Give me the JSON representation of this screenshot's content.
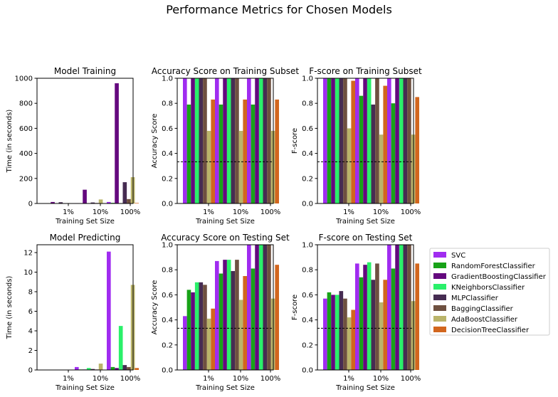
{
  "figure_title": "Performance Metrics for Chosen Models",
  "x_tick_labels": [
    "1%",
    "10%",
    "100%"
  ],
  "chart_data": [
    {
      "type": "bar",
      "title": "Model Training",
      "xlabel": "Training Set Size",
      "ylabel": "Time (in seconds)",
      "ylim": [
        0,
        1000
      ],
      "yticks": [
        "0",
        "200",
        "400",
        "600",
        "800",
        "1000"
      ],
      "categories": [
        "1%",
        "10%",
        "100%"
      ],
      "baseline": null,
      "series": [
        {
          "name": "SVC",
          "values": [
            0.1,
            3,
            12
          ]
        },
        {
          "name": "RandomForestClassifier",
          "values": [
            0.5,
            2,
            5
          ]
        },
        {
          "name": "GradientBoostingClassifier",
          "values": [
            12,
            110,
            960
          ]
        },
        {
          "name": "KNeighborsClassifier",
          "values": [
            0.1,
            0.5,
            2
          ]
        },
        {
          "name": "MLPClassifier",
          "values": [
            10,
            8,
            170
          ]
        },
        {
          "name": "BaggingClassifier",
          "values": [
            1,
            4,
            35
          ]
        },
        {
          "name": "AdaBoostClassifier",
          "values": [
            3,
            32,
            210
          ]
        },
        {
          "name": "DecisionTreeClassifier",
          "values": [
            0.2,
            1,
            4
          ]
        }
      ]
    },
    {
      "type": "bar",
      "title": "Accuracy Score on Training Subset",
      "xlabel": "Training Set Size",
      "ylabel": "Accuracy Score",
      "ylim": [
        0,
        1
      ],
      "yticks": [
        "0.0",
        "0.2",
        "0.4",
        "0.6",
        "0.8",
        "1.0"
      ],
      "categories": [
        "1%",
        "10%",
        "100%"
      ],
      "baseline": 0.333,
      "series": [
        {
          "name": "SVC",
          "values": [
            1.0,
            1.0,
            1.0
          ]
        },
        {
          "name": "RandomForestClassifier",
          "values": [
            0.79,
            0.79,
            0.79
          ]
        },
        {
          "name": "GradientBoostingClassifier",
          "values": [
            1.0,
            1.0,
            1.0
          ]
        },
        {
          "name": "KNeighborsClassifier",
          "values": [
            1.0,
            1.0,
            1.0
          ]
        },
        {
          "name": "MLPClassifier",
          "values": [
            1.0,
            1.0,
            1.0
          ]
        },
        {
          "name": "BaggingClassifier",
          "values": [
            1.0,
            1.0,
            1.0
          ]
        },
        {
          "name": "AdaBoostClassifier",
          "values": [
            0.58,
            0.58,
            0.58
          ]
        },
        {
          "name": "DecisionTreeClassifier",
          "values": [
            0.83,
            0.83,
            0.83
          ]
        }
      ]
    },
    {
      "type": "bar",
      "title": "F-score on Training Subset",
      "xlabel": "Training Set Size",
      "ylabel": "F-score",
      "ylim": [
        0,
        1
      ],
      "yticks": [
        "0.0",
        "0.2",
        "0.4",
        "0.6",
        "0.8",
        "1.0"
      ],
      "categories": [
        "1%",
        "10%",
        "100%"
      ],
      "baseline": 0.333,
      "series": [
        {
          "name": "SVC",
          "values": [
            1.0,
            1.0,
            1.0
          ]
        },
        {
          "name": "RandomForestClassifier",
          "values": [
            1.0,
            0.86,
            0.8
          ]
        },
        {
          "name": "GradientBoostingClassifier",
          "values": [
            1.0,
            1.0,
            1.0
          ]
        },
        {
          "name": "KNeighborsClassifier",
          "values": [
            1.0,
            1.0,
            1.0
          ]
        },
        {
          "name": "MLPClassifier",
          "values": [
            1.0,
            0.79,
            1.0
          ]
        },
        {
          "name": "BaggingClassifier",
          "values": [
            1.0,
            1.0,
            1.0
          ]
        },
        {
          "name": "AdaBoostClassifier",
          "values": [
            0.6,
            0.55,
            0.55
          ]
        },
        {
          "name": "DecisionTreeClassifier",
          "values": [
            0.98,
            0.94,
            0.85
          ]
        }
      ]
    },
    {
      "type": "bar",
      "title": "Model Predicting",
      "xlabel": "Training Set Size",
      "ylabel": "Time (in seconds)",
      "ylim": [
        0,
        12.8
      ],
      "yticks": [
        "0",
        "2",
        "4",
        "6",
        "8",
        "10",
        "12"
      ],
      "ytick_values": [
        0,
        2,
        4,
        6,
        8,
        10,
        12
      ],
      "categories": [
        "1%",
        "10%",
        "100%"
      ],
      "baseline": null,
      "series": [
        {
          "name": "SVC",
          "values": [
            0.02,
            0.3,
            12.1
          ]
        },
        {
          "name": "RandomForestClassifier",
          "values": [
            0.01,
            0.05,
            0.3
          ]
        },
        {
          "name": "GradientBoostingClassifier",
          "values": [
            0.01,
            0.05,
            0.2
          ]
        },
        {
          "name": "KNeighborsClassifier",
          "values": [
            0.03,
            0.2,
            4.5
          ]
        },
        {
          "name": "MLPClassifier",
          "values": [
            0.01,
            0.1,
            0.5
          ]
        },
        {
          "name": "BaggingClassifier",
          "values": [
            0.01,
            0.05,
            0.3
          ]
        },
        {
          "name": "AdaBoostClassifier",
          "values": [
            0.02,
            0.65,
            8.7
          ]
        },
        {
          "name": "DecisionTreeClassifier",
          "values": [
            0.01,
            0.03,
            0.2
          ]
        }
      ]
    },
    {
      "type": "bar",
      "title": "Accuracy Score on Testing Set",
      "xlabel": "Training Set Size",
      "ylabel": "Accuracy Score",
      "ylim": [
        0,
        1
      ],
      "yticks": [
        "0.0",
        "0.2",
        "0.4",
        "0.6",
        "0.8",
        "1.0"
      ],
      "categories": [
        "1%",
        "10%",
        "100%"
      ],
      "baseline": 0.333,
      "series": [
        {
          "name": "SVC",
          "values": [
            0.43,
            0.87,
            1.0
          ]
        },
        {
          "name": "RandomForestClassifier",
          "values": [
            0.64,
            0.77,
            0.81
          ]
        },
        {
          "name": "GradientBoostingClassifier",
          "values": [
            0.62,
            0.88,
            1.0
          ]
        },
        {
          "name": "KNeighborsClassifier",
          "values": [
            0.7,
            0.88,
            1.0
          ]
        },
        {
          "name": "MLPClassifier",
          "values": [
            0.7,
            0.79,
            1.0
          ]
        },
        {
          "name": "BaggingClassifier",
          "values": [
            0.68,
            0.88,
            1.0
          ]
        },
        {
          "name": "AdaBoostClassifier",
          "values": [
            0.41,
            0.56,
            0.57
          ]
        },
        {
          "name": "DecisionTreeClassifier",
          "values": [
            0.49,
            0.75,
            0.84
          ]
        }
      ]
    },
    {
      "type": "bar",
      "title": "F-score on Testing Set",
      "xlabel": "Training Set Size",
      "ylabel": "F-score",
      "ylim": [
        0,
        1
      ],
      "yticks": [
        "0.0",
        "0.2",
        "0.4",
        "0.6",
        "0.8",
        "1.0"
      ],
      "categories": [
        "1%",
        "10%",
        "100%"
      ],
      "baseline": 0.333,
      "series": [
        {
          "name": "SVC",
          "values": [
            0.57,
            0.85,
            1.0
          ]
        },
        {
          "name": "RandomForestClassifier",
          "values": [
            0.62,
            0.74,
            0.81
          ]
        },
        {
          "name": "GradientBoostingClassifier",
          "values": [
            0.6,
            0.84,
            1.0
          ]
        },
        {
          "name": "KNeighborsClassifier",
          "values": [
            0.6,
            0.86,
            1.0
          ]
        },
        {
          "name": "MLPClassifier",
          "values": [
            0.63,
            0.72,
            1.0
          ]
        },
        {
          "name": "BaggingClassifier",
          "values": [
            0.57,
            0.85,
            1.0
          ]
        },
        {
          "name": "AdaBoostClassifier",
          "values": [
            0.42,
            0.54,
            0.55
          ]
        },
        {
          "name": "DecisionTreeClassifier",
          "values": [
            0.48,
            0.72,
            0.85
          ]
        }
      ]
    }
  ],
  "legend": {
    "placement": "right",
    "items": [
      {
        "name": "SVC",
        "color": "#a02cf0"
      },
      {
        "name": "RandomForestClassifier",
        "color": "#18a218"
      },
      {
        "name": "GradientBoostingClassifier",
        "color": "#64087e"
      },
      {
        "name": "KNeighborsClassifier",
        "color": "#2af06a"
      },
      {
        "name": "MLPClassifier",
        "color": "#462c52"
      },
      {
        "name": "BaggingClassifier",
        "color": "#6e5040"
      },
      {
        "name": "AdaBoostClassifier",
        "color": "#bab46a"
      },
      {
        "name": "DecisionTreeClassifier",
        "color": "#d2661e"
      }
    ]
  }
}
